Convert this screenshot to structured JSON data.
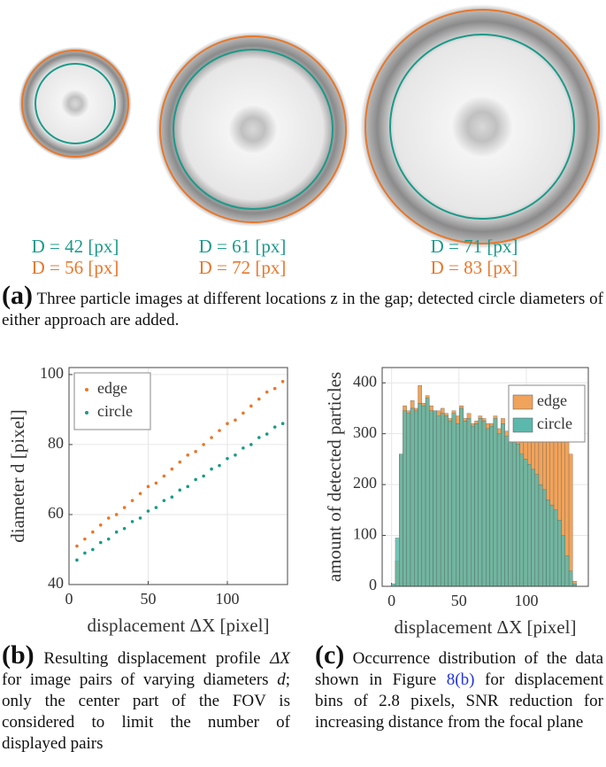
{
  "panel_a": {
    "labels": [
      {
        "circle": "D = 42 [px]",
        "edge": "D = 56 [px]"
      },
      {
        "circle": "D = 61 [px]",
        "edge": "D = 72 [px]"
      },
      {
        "circle": "D = 71 [px]",
        "edge": "D = 83 [px]"
      }
    ]
  },
  "chart_data": [
    {
      "type": "scatter",
      "xlabel": "displacement ΔX [pixel]",
      "ylabel": "diameter d [pixel]",
      "x": [
        5,
        10,
        15,
        20,
        25,
        30,
        35,
        40,
        45,
        50,
        55,
        60,
        65,
        70,
        75,
        80,
        85,
        90,
        95,
        100,
        105,
        110,
        115,
        120,
        125,
        130,
        135
      ],
      "series": [
        {
          "name": "edge",
          "color": "#e8772a",
          "values": [
            51,
            53,
            55,
            57,
            59,
            60,
            62,
            64,
            66,
            68,
            69,
            71,
            73,
            75,
            77,
            78,
            80,
            82,
            84,
            86,
            87,
            89,
            91,
            93,
            95,
            96,
            98
          ]
        },
        {
          "name": "circle",
          "color": "#1a9a8a",
          "values": [
            47,
            49,
            50,
            52,
            53,
            55,
            56,
            58,
            59,
            61,
            62,
            64,
            65,
            67,
            68,
            70,
            71,
            73,
            74,
            76,
            77,
            79,
            80,
            82,
            83,
            85,
            86
          ]
        }
      ],
      "xlim": [
        0,
        138
      ],
      "xticks": [
        0,
        50,
        100
      ],
      "ylim": [
        40,
        102
      ],
      "yticks": [
        40,
        60,
        80,
        100
      ],
      "grid": true,
      "legend": "top-left"
    },
    {
      "type": "histogram",
      "xlabel": "displacement ΔX [pixel]",
      "ylabel": "amount of detected particles",
      "bins": [
        0,
        2.8,
        5.6,
        8.4,
        11.2,
        14,
        16.8,
        19.6,
        22.4,
        25.2,
        28,
        30.8,
        33.6,
        36.4,
        39.2,
        42,
        44.8,
        47.6,
        50.4,
        53.2,
        56,
        58.8,
        61.6,
        64.4,
        67.2,
        70,
        72.8,
        75.6,
        78.4,
        81.2,
        84,
        86.8,
        89.6,
        92.4,
        95.2,
        98,
        100.8,
        103.6,
        106.4,
        109.2,
        112,
        114.8,
        117.6,
        120.4,
        123.2,
        126,
        128.8,
        131.6,
        134.4,
        137.2,
        140
      ],
      "series": [
        {
          "name": "edge",
          "color": "#f0a35a",
          "values": [
            0,
            50,
            260,
            355,
            345,
            365,
            350,
            395,
            360,
            375,
            355,
            345,
            345,
            350,
            340,
            330,
            345,
            335,
            355,
            330,
            340,
            320,
            325,
            335,
            330,
            320,
            320,
            335,
            310,
            330,
            305,
            300,
            320,
            310,
            290,
            300,
            330,
            310,
            300,
            320,
            325,
            330,
            320,
            330,
            330,
            320,
            300,
            260,
            10,
            0
          ]
        },
        {
          "name": "circle",
          "color": "#5cb8ac",
          "values": [
            5,
            95,
            260,
            345,
            340,
            350,
            345,
            360,
            355,
            370,
            345,
            345,
            335,
            340,
            335,
            325,
            340,
            320,
            350,
            325,
            330,
            315,
            320,
            330,
            325,
            310,
            315,
            330,
            300,
            320,
            295,
            290,
            300,
            280,
            260,
            250,
            240,
            230,
            220,
            200,
            190,
            170,
            160,
            150,
            130,
            100,
            60,
            30,
            5,
            0
          ]
        }
      ],
      "xlim": [
        -7,
        146
      ],
      "xticks": [
        0,
        50,
        100
      ],
      "ylim": [
        0,
        430
      ],
      "yticks": [
        0,
        100,
        200,
        300,
        400
      ],
      "grid": true,
      "legend": "top-right"
    }
  ],
  "captions": {
    "a": {
      "label": "(a)",
      "text": "Three particle images at different locations z in the gap; detected circle diameters of either approach are added."
    },
    "b": {
      "label": "(b)",
      "parts": [
        "Resulting displacement profile ",
        "ΔX",
        " for image pairs of varying diameters ",
        "d",
        "; only the center part of the FOV is considered to limit the number of displayed pairs"
      ]
    },
    "c": {
      "label": "(c)",
      "parts": [
        "Occurrence distribution of the data shown in Figure ",
        "8(b)",
        " for displacement bins of 2.8 pixels, SNR reduction for increasing distance from the focal plane"
      ]
    }
  }
}
